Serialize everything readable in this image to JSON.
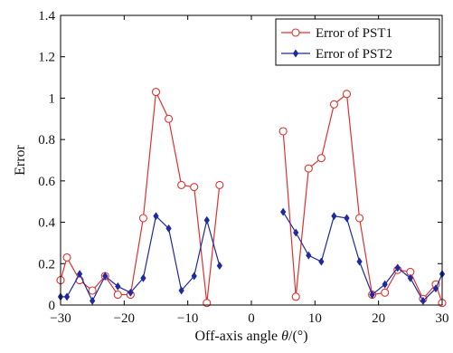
{
  "chart_data": {
    "type": "line",
    "xlabel_prefix": "Off-axis angle ",
    "xlabel_symbol": "θ",
    "xlabel_suffix": "/(°)",
    "ylabel": "Error",
    "xlim": [
      -30,
      30
    ],
    "ylim": [
      0,
      1.4
    ],
    "x_ticks": [
      -30,
      -20,
      -10,
      0,
      10,
      20,
      30
    ],
    "x_tick_labels": [
      "−30",
      "−20",
      "−10",
      "0",
      "10",
      "20",
      "30"
    ],
    "y_ticks": [
      0,
      0.2,
      0.4,
      0.6,
      0.8,
      1,
      1.2,
      1.4
    ],
    "y_tick_labels": [
      "0",
      "0.2",
      "0.4",
      "0.6",
      "0.8",
      "1",
      "1.2",
      "1.4"
    ],
    "grid": false,
    "legend_position": "top-right",
    "series": [
      {
        "name": "Error of PST1",
        "color": "#e0312f",
        "marker": "circle",
        "segments": [
          [
            [
              -30,
              0.12
            ],
            [
              -29,
              0.23
            ],
            [
              -27,
              0.12
            ],
            [
              -25,
              0.07
            ],
            [
              -23,
              0.14
            ],
            [
              -21,
              0.05
            ],
            [
              -19,
              0.05
            ],
            [
              -17,
              0.42
            ],
            [
              -15,
              1.03
            ],
            [
              -13,
              0.9
            ],
            [
              -11,
              0.58
            ],
            [
              -9,
              0.57
            ],
            [
              -7,
              0.01
            ],
            [
              -5,
              0.58
            ]
          ],
          [
            [
              5,
              0.84
            ],
            [
              7,
              0.04
            ],
            [
              9,
              0.66
            ],
            [
              11,
              0.71
            ],
            [
              13,
              0.97
            ],
            [
              15,
              1.02
            ],
            [
              17,
              0.42
            ],
            [
              19,
              0.05
            ],
            [
              21,
              0.06
            ],
            [
              23,
              0.17
            ],
            [
              25,
              0.16
            ],
            [
              27,
              0.03
            ],
            [
              29,
              0.1
            ],
            [
              30,
              0.01
            ]
          ]
        ]
      },
      {
        "name": "Error of PST2",
        "color": "#1f2aa0",
        "marker": "diamond",
        "segments": [
          [
            [
              -30,
              0.04
            ],
            [
              -29,
              0.04
            ],
            [
              -27,
              0.15
            ],
            [
              -25,
              0.02
            ],
            [
              -23,
              0.14
            ],
            [
              -21,
              0.09
            ],
            [
              -19,
              0.06
            ],
            [
              -17,
              0.13
            ],
            [
              -15,
              0.43
            ],
            [
              -13,
              0.37
            ],
            [
              -11,
              0.07
            ],
            [
              -9,
              0.14
            ],
            [
              -7,
              0.41
            ],
            [
              -5,
              0.19
            ]
          ],
          [
            [
              5,
              0.45
            ],
            [
              7,
              0.35
            ],
            [
              9,
              0.24
            ],
            [
              11,
              0.21
            ],
            [
              13,
              0.43
            ],
            [
              15,
              0.42
            ],
            [
              17,
              0.21
            ],
            [
              19,
              0.05
            ],
            [
              21,
              0.1
            ],
            [
              23,
              0.18
            ],
            [
              25,
              0.13
            ],
            [
              27,
              0.02
            ],
            [
              29,
              0.08
            ],
            [
              30,
              0.15
            ]
          ]
        ]
      }
    ]
  }
}
